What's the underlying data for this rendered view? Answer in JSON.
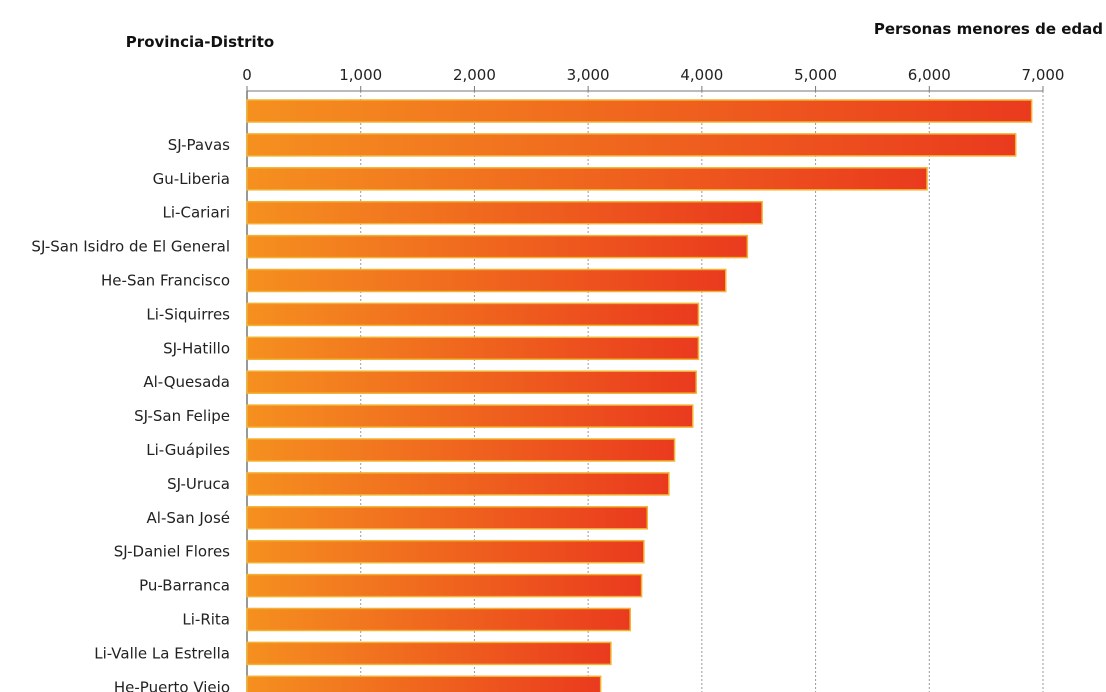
{
  "chart_data": {
    "type": "bar",
    "orientation": "horizontal",
    "ylabel": "Provincia-Distrito",
    "xlabel": "Personas menores de edad",
    "xlim": [
      0,
      7000
    ],
    "xticks": [
      0,
      1000,
      2000,
      3000,
      4000,
      5000,
      6000,
      7000
    ],
    "xtick_labels": [
      "0",
      "1,000",
      "2,000",
      "3,000",
      "4,000",
      "5,000",
      "6,000",
      "7,000"
    ],
    "categories": [
      "",
      "SJ-Pavas",
      "Gu-Liberia",
      "Li-Cariari",
      "SJ-San Isidro de El General",
      "He-San Francisco",
      "Li-Siquirres",
      "SJ-Hatillo",
      "Al-Quesada",
      "SJ-San Felipe",
      "Li-Guápiles",
      "SJ-Uruca",
      "Al-San José",
      "SJ-Daniel Flores",
      "Pu-Barranca",
      "Li-Rita",
      "Li-Valle La Estrella",
      "He-Puerto Viejo"
    ],
    "values": [
      6900,
      6760,
      5980,
      4530,
      4400,
      4210,
      3970,
      3970,
      3950,
      3920,
      3760,
      3710,
      3520,
      3490,
      3470,
      3370,
      3200,
      3110
    ],
    "grid": true,
    "colors": {
      "bar_start": "#f5901f",
      "bar_end": "#ea3a1e",
      "bar_border": "#f2b233",
      "grid": "#9a9a9a",
      "axis": "#777777"
    }
  }
}
